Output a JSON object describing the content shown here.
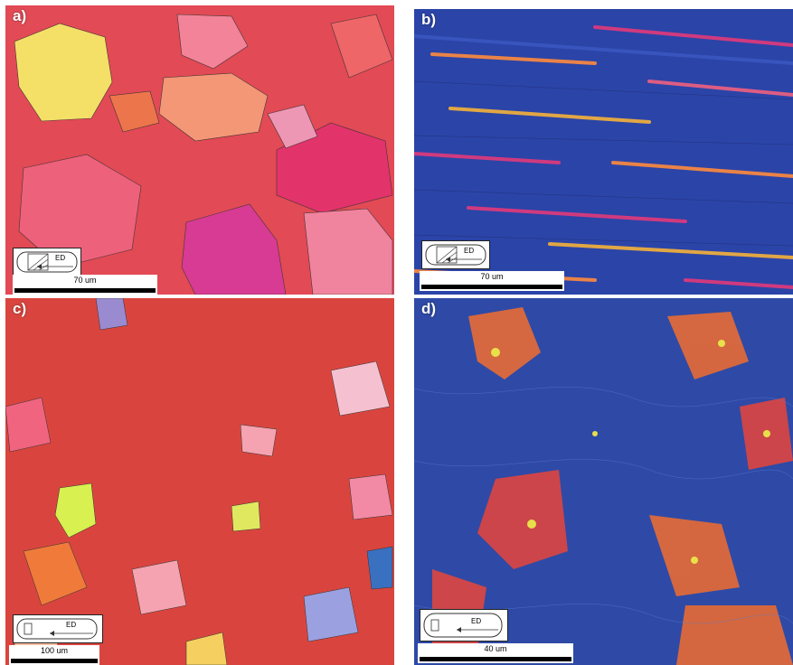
{
  "panels": [
    {
      "label": "a)",
      "scale": "70 um",
      "direction": "ED",
      "colors": [
        "#e8485a",
        "#ef6a4a",
        "#f7a07a",
        "#e2316e"
      ]
    },
    {
      "label": "b)",
      "scale": "70 um",
      "direction": "ED",
      "colors": [
        "#2b44a8",
        "#3a56c0",
        "#ff8a3d",
        "#e23a7a"
      ]
    },
    {
      "label": "c)",
      "scale": "100 um",
      "direction": "ED",
      "colors": [
        "#d9453e",
        "#f07a3a",
        "#f5a3b0",
        "#d8f050"
      ]
    },
    {
      "label": "d)",
      "scale": "40 um",
      "direction": "ED",
      "colors": [
        "#2e4aa6",
        "#3b5fc5",
        "#f26d2e",
        "#e8e04a"
      ]
    }
  ]
}
